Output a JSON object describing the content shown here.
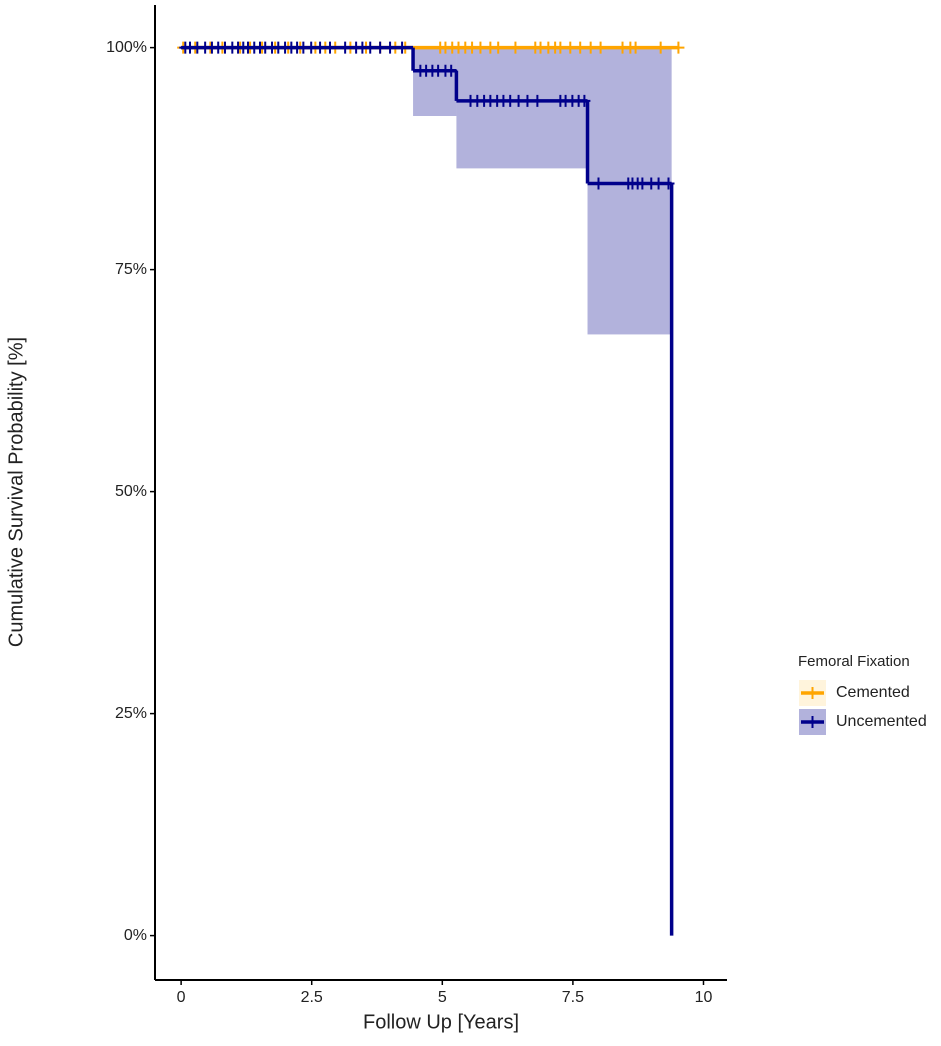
{
  "chart_data": {
    "type": "survival",
    "x_label": "Follow Up [Years]",
    "y_label": "Cumulative Survival Probability [%]",
    "legend_title": "Femoral Fixation",
    "legend_position": "right",
    "xlim": [
      -0.5,
      10.45
    ],
    "xticks": [
      0,
      2.5,
      5,
      7.5,
      10
    ],
    "ylim": [
      -5,
      104.8
    ],
    "yticks": [
      {
        "value": 0,
        "label": "0%"
      },
      {
        "value": 25,
        "label": "25%"
      },
      {
        "value": 50,
        "label": "50%"
      },
      {
        "value": 75,
        "label": "75%"
      },
      {
        "value": 100,
        "label": "100%"
      }
    ],
    "series": [
      {
        "name": "Cemented",
        "color": "#FFA500",
        "band_color": "#FFD98C",
        "x": [
          0,
          9.54
        ],
        "values": [
          100,
          100
        ],
        "lower": [
          100,
          null
        ],
        "upper": [
          100,
          null
        ],
        "censor_x": [
          0.04,
          0.27,
          0.56,
          0.79,
          1.13,
          1.32,
          1.55,
          1.8,
          2.05,
          2.28,
          2.57,
          2.76,
          2.95,
          3.24,
          3.54,
          3.81,
          4.1,
          4.29,
          4.96,
          5.06,
          5.19,
          5.31,
          5.44,
          5.57,
          5.73,
          5.92,
          6.07,
          6.4,
          6.78,
          6.88,
          7.03,
          7.16,
          7.26,
          7.45,
          7.64,
          7.84,
          8.03,
          8.45,
          8.6,
          8.7,
          9.18,
          9.52
        ],
        "censor_values": [
          100,
          100,
          100,
          100,
          100,
          100,
          100,
          100,
          100,
          100,
          100,
          100,
          100,
          100,
          100,
          100,
          100,
          100,
          100,
          100,
          100,
          100,
          100,
          100,
          100,
          100,
          100,
          100,
          100,
          100,
          100,
          100,
          100,
          100,
          100,
          100,
          100,
          100,
          100,
          100,
          100,
          100
        ]
      },
      {
        "name": "Uncemented",
        "color": "#00008B",
        "band_color": "#00008B",
        "x": [
          0,
          4.44,
          5.27,
          7.78,
          9.39
        ],
        "values": [
          100,
          97.4,
          94.0,
          84.7,
          0
        ],
        "lower": [
          100,
          92.3,
          86.4,
          67.7,
          null
        ],
        "upper": [
          100,
          99.9,
          99.9,
          99.9,
          null
        ],
        "censor_x": [
          0.08,
          0.17,
          0.31,
          0.46,
          0.59,
          0.71,
          0.84,
          0.98,
          1.09,
          1.19,
          1.28,
          1.4,
          1.51,
          1.61,
          1.74,
          1.86,
          1.99,
          2.11,
          2.22,
          2.34,
          2.49,
          2.66,
          2.85,
          3.14,
          3.35,
          3.47,
          3.62,
          3.81,
          4.0,
          4.23,
          4.58,
          4.69,
          4.81,
          4.92,
          5.06,
          5.17,
          5.54,
          5.67,
          5.8,
          5.92,
          6.05,
          6.17,
          6.3,
          6.46,
          6.63,
          6.82,
          7.26,
          7.36,
          7.49,
          7.61,
          7.72,
          7.99,
          8.56,
          8.64,
          8.74,
          8.83,
          9.0,
          9.14,
          9.33
        ],
        "censor_values": [
          100,
          100,
          100,
          100,
          100,
          100,
          100,
          100,
          100,
          100,
          100,
          100,
          100,
          100,
          100,
          100,
          100,
          100,
          100,
          100,
          100,
          100,
          100,
          100,
          100,
          100,
          100,
          100,
          100,
          100,
          97.4,
          97.4,
          97.4,
          97.4,
          97.4,
          97.4,
          94.0,
          94.0,
          94.0,
          94.0,
          94.0,
          94.0,
          94.0,
          94.0,
          94.0,
          94.0,
          94.0,
          94.0,
          94.0,
          94.0,
          94.0,
          84.7,
          84.7,
          84.7,
          84.7,
          84.7,
          84.7,
          84.7,
          84.7
        ]
      }
    ]
  }
}
